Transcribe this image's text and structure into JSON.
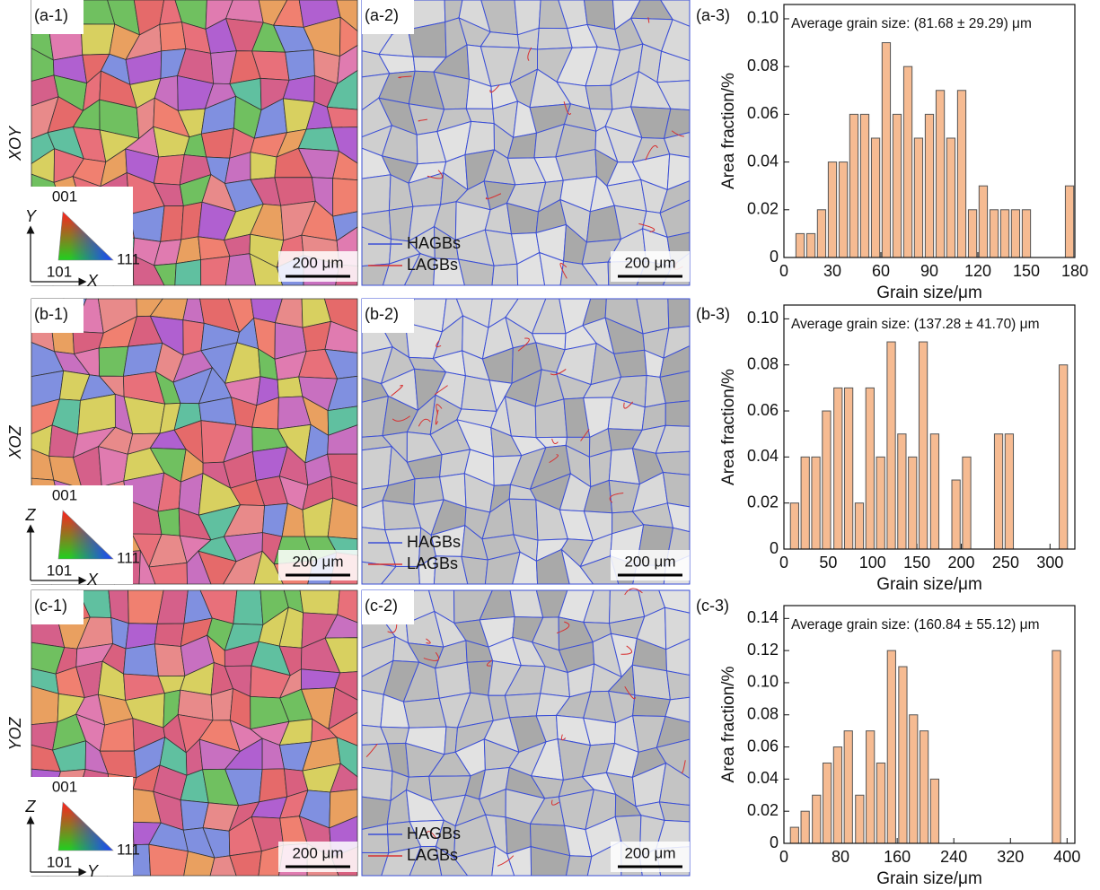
{
  "rows": [
    {
      "plane": "XOY",
      "map_label": "(a-1)",
      "ipf": [
        "001",
        "101",
        "111"
      ],
      "axis_up": "Y",
      "axis_right": "X",
      "map_scale": "200 μm",
      "boundary_label": "(a-2)",
      "legend": [
        "HAGBs",
        "LAGBs"
      ],
      "boundary_scale": "200 μm"
    },
    {
      "plane": "XOZ",
      "map_label": "(b-1)",
      "ipf": [
        "001",
        "101",
        "111"
      ],
      "axis_up": "Z",
      "axis_right": "X",
      "map_scale": "200 μm",
      "boundary_label": "(b-2)",
      "legend": [
        "HAGBs",
        "LAGBs"
      ],
      "boundary_scale": "200 μm"
    },
    {
      "plane": "YOZ",
      "map_label": "(c-1)",
      "ipf": [
        "001",
        "101",
        "111"
      ],
      "axis_up": "Z",
      "axis_right": "Y",
      "map_scale": "200 μm",
      "boundary_label": "(c-2)",
      "legend": [
        "HAGBs",
        "LAGBs"
      ],
      "boundary_scale": "200 μm"
    }
  ],
  "chart_data": [
    {
      "type": "bar",
      "panel_label": "(a-3)",
      "annotation": "Average grain size: (81.68 ± 29.29) μm",
      "x_label": "Grain size/μm",
      "y_label": "Area fraction/%",
      "color": "#f6bb92",
      "x": [
        10,
        16.7,
        23.3,
        30,
        36.7,
        43.3,
        50,
        56.7,
        63.3,
        70,
        76.7,
        83.3,
        90,
        96.7,
        103.3,
        110,
        116.7,
        123.3,
        130,
        136.7,
        143.3,
        150,
        176.7
      ],
      "values": [
        0.01,
        0.01,
        0.02,
        0.04,
        0.04,
        0.06,
        0.06,
        0.05,
        0.09,
        0.06,
        0.08,
        0.05,
        0.06,
        0.07,
        0.05,
        0.07,
        0.02,
        0.03,
        0.02,
        0.02,
        0.02,
        0.02,
        0.03
      ],
      "xlim": [
        0,
        180
      ],
      "xticks": [
        0,
        30,
        60,
        90,
        120,
        150,
        180
      ],
      "ylim": [
        0,
        0.106
      ],
      "yticks": [
        0,
        0.02,
        0.04,
        0.06,
        0.08,
        {
          "value": 0.1,
          "label": "0.10"
        }
      ]
    },
    {
      "type": "bar",
      "panel_label": "(b-3)",
      "annotation": "Average grain size: (137.28 ± 41.70) μm",
      "x_label": "Grain size/μm",
      "y_label": "Area fraction/%",
      "color": "#f6bb92",
      "x": [
        12,
        24,
        36,
        48,
        61,
        73,
        85,
        97,
        109,
        121,
        133,
        145,
        157,
        170,
        194,
        206,
        242,
        254,
        315
      ],
      "values": [
        0.02,
        0.04,
        0.04,
        0.06,
        0.07,
        0.07,
        0.02,
        0.07,
        0.04,
        0.09,
        0.05,
        0.04,
        0.09,
        0.05,
        0.03,
        0.04,
        0.05,
        0.05,
        0.08
      ],
      "xlim": [
        0,
        328
      ],
      "xticks": [
        0,
        50,
        100,
        150,
        200,
        250,
        300
      ],
      "ylim": [
        0,
        0.106
      ],
      "yticks": [
        0,
        0.02,
        0.04,
        0.06,
        0.08,
        {
          "value": 0.1,
          "label": "0.10"
        }
      ]
    },
    {
      "type": "bar",
      "panel_label": "(c-3)",
      "annotation": "Average grain size: (160.84 ± 55.12) μm",
      "x_label": "Grain size/μm",
      "y_label": "Area fraction/%",
      "color": "#f6bb92",
      "x": [
        15,
        30,
        46,
        61,
        76,
        91,
        107,
        122,
        137,
        152,
        168,
        183,
        198,
        213,
        385
      ],
      "values": [
        0.01,
        0.02,
        0.03,
        0.05,
        0.06,
        0.07,
        0.03,
        0.07,
        0.05,
        0.12,
        0.11,
        0.08,
        0.07,
        0.04,
        0.12
      ],
      "xlim": [
        0,
        411
      ],
      "xticks": [
        0,
        80,
        160,
        240,
        320,
        400
      ],
      "ylim": [
        0,
        0.148
      ],
      "yticks": [
        0,
        0.02,
        0.04,
        0.06,
        0.08,
        {
          "value": 0.1,
          "label": "0.10"
        },
        0.12,
        0.14
      ]
    }
  ]
}
